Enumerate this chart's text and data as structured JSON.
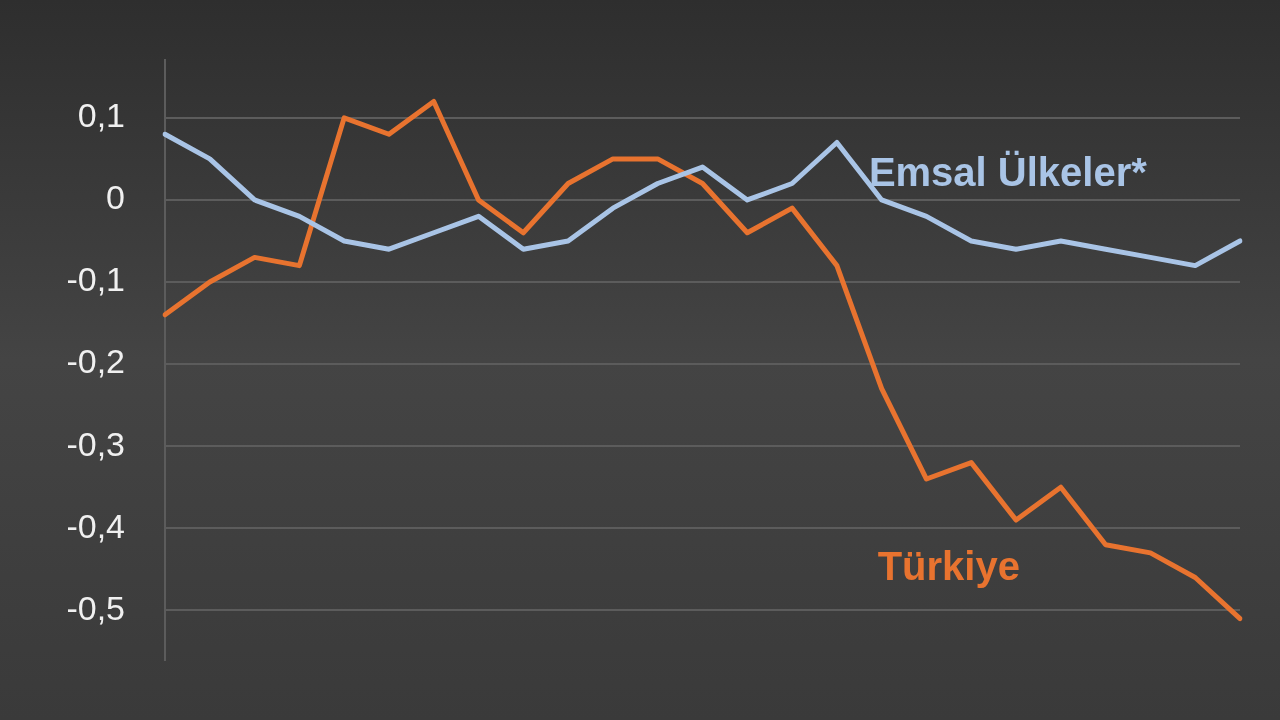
{
  "chart_data": {
    "type": "line",
    "categories": [
      null,
      null,
      null,
      null,
      null,
      null,
      null,
      null,
      null,
      null,
      null,
      null,
      null,
      null,
      null,
      null,
      null,
      null,
      null,
      null,
      null,
      null,
      null,
      null,
      null
    ],
    "series": [
      {
        "name": "Emsal Ülkeler*",
        "color": "#a9c4e6",
        "values": [
          0.08,
          0.05,
          0.0,
          -0.02,
          -0.05,
          -0.06,
          -0.04,
          -0.02,
          -0.06,
          -0.05,
          -0.01,
          0.02,
          0.04,
          0.0,
          0.02,
          0.07,
          0.0,
          -0.02,
          -0.05,
          -0.06,
          -0.05,
          -0.06,
          -0.07,
          -0.08,
          -0.05
        ]
      },
      {
        "name": "Türkiye",
        "color": "#e8732f",
        "values": [
          -0.14,
          -0.1,
          -0.07,
          -0.08,
          0.1,
          0.08,
          0.12,
          0.0,
          -0.04,
          0.02,
          0.05,
          0.05,
          0.02,
          -0.04,
          -0.01,
          -0.08,
          -0.23,
          -0.34,
          -0.32,
          -0.39,
          -0.35,
          -0.42,
          -0.43,
          -0.46,
          -0.51
        ]
      }
    ],
    "ylim": [
      -0.56,
      0.17
    ],
    "yticks": [
      {
        "value": -0.5,
        "label": "-0,5"
      },
      {
        "value": -0.4,
        "label": "-0,4"
      },
      {
        "value": -0.3,
        "label": "-0,3"
      },
      {
        "value": -0.2,
        "label": "-0,2"
      },
      {
        "value": -0.1,
        "label": "-0,1"
      },
      {
        "value": 0,
        "label": "0"
      },
      {
        "value": 0.1,
        "label": "0,1"
      }
    ],
    "grid": "y",
    "tick_labels": "y",
    "marker": "none",
    "line_style": "solid",
    "legend": false
  }
}
